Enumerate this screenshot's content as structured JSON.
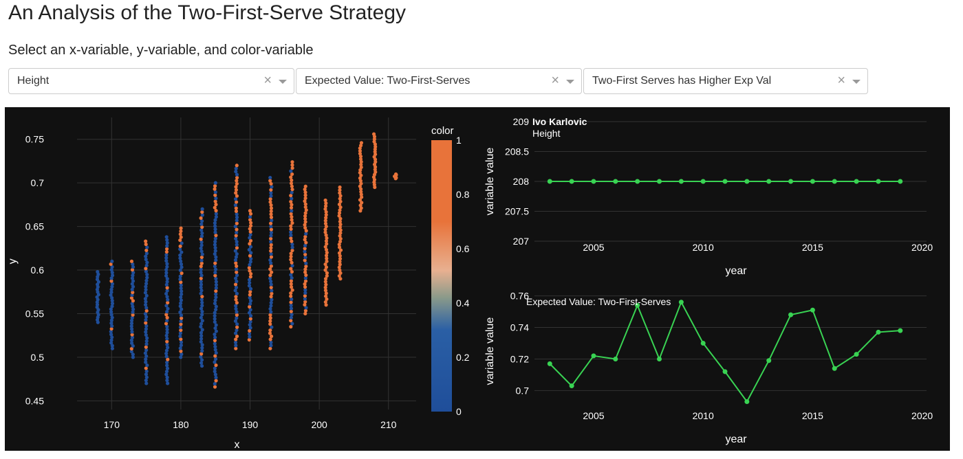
{
  "page": {
    "title": "An Analysis of the Two-First-Serve Strategy",
    "subtitle": "Select an x-variable, y-variable, and color-variable"
  },
  "dropdowns": [
    {
      "value": "Height",
      "clear_icon": "×",
      "arrow_icon": "chevron-down-icon"
    },
    {
      "value": "Expected Value: Two-First-Serves",
      "clear_icon": "×",
      "arrow_icon": "chevron-down-icon"
    },
    {
      "value": "Two-First Serves has Higher Exp Val",
      "clear_icon": "×",
      "arrow_icon": "chevron-down-icon"
    }
  ],
  "colors": {
    "panel_bg": "#111111",
    "low": "#1f4e9a",
    "high": "#e8733a",
    "line": "#39d353",
    "grid": "#333333",
    "text": "#ffffff"
  },
  "chart_data": [
    {
      "type": "scatter",
      "xlabel": "x",
      "ylabel": "y",
      "xlim": [
        165,
        214
      ],
      "ylim": [
        0.44,
        0.775
      ],
      "xticks": [
        "170",
        "180",
        "190",
        "200",
        "210"
      ],
      "yticks": [
        "0.45",
        "0.5",
        "0.55",
        "0.6",
        "0.65",
        "0.7",
        "0.75"
      ],
      "colorbar": {
        "title": "color",
        "ticks": [
          "0",
          "0.2",
          "0.4",
          "0.6",
          "0.8",
          "1"
        ]
      },
      "grid": true,
      "columns": [
        {
          "x": 168,
          "ymin": 0.54,
          "ymax": 0.598,
          "frac_high": 0.0
        },
        {
          "x": 170,
          "ymin": 0.51,
          "ymax": 0.61,
          "frac_high": 0.05
        },
        {
          "x": 173,
          "ymin": 0.5,
          "ymax": 0.61,
          "frac_high": 0.1
        },
        {
          "x": 175,
          "ymin": 0.47,
          "ymax": 0.633,
          "frac_high": 0.1
        },
        {
          "x": 178,
          "ymin": 0.47,
          "ymax": 0.638,
          "frac_high": 0.12
        },
        {
          "x": 180,
          "ymin": 0.5,
          "ymax": 0.648,
          "frac_high": 0.12
        },
        {
          "x": 183,
          "ymin": 0.49,
          "ymax": 0.67,
          "frac_high": 0.15
        },
        {
          "x": 185,
          "ymin": 0.466,
          "ymax": 0.7,
          "frac_high": 0.15
        },
        {
          "x": 188,
          "ymin": 0.51,
          "ymax": 0.72,
          "frac_high": 0.3
        },
        {
          "x": 190,
          "ymin": 0.52,
          "ymax": 0.668,
          "frac_high": 0.3
        },
        {
          "x": 193,
          "ymin": 0.51,
          "ymax": 0.706,
          "frac_high": 0.4
        },
        {
          "x": 196,
          "ymin": 0.535,
          "ymax": 0.724,
          "frac_high": 0.55
        },
        {
          "x": 198,
          "ymin": 0.55,
          "ymax": 0.696,
          "frac_high": 0.5
        },
        {
          "x": 201,
          "ymin": 0.56,
          "ymax": 0.68,
          "frac_high": 1.0
        },
        {
          "x": 203,
          "ymin": 0.59,
          "ymax": 0.695,
          "frac_high": 1.0
        },
        {
          "x": 206,
          "ymin": 0.668,
          "ymax": 0.746,
          "frac_high": 0.95
        },
        {
          "x": 208,
          "ymin": 0.695,
          "ymax": 0.756,
          "frac_high": 1.0
        },
        {
          "x": 211,
          "ymin": 0.705,
          "ymax": 0.71,
          "frac_high": 1.0
        }
      ]
    },
    {
      "type": "line",
      "annotation_title": "Ivo Karlovic",
      "annotation_sub": "Height",
      "xlabel": "year",
      "ylabel": "variable value",
      "xlim": [
        2002.3,
        2020.2
      ],
      "ylim": [
        207,
        209
      ],
      "xticks": [
        "2005",
        "2010",
        "2015",
        "2020"
      ],
      "yticks": [
        "207",
        "207.5",
        "208",
        "208.5",
        "209"
      ],
      "x": [
        2003,
        2004,
        2005,
        2006,
        2007,
        2008,
        2009,
        2010,
        2011,
        2012,
        2013,
        2014,
        2015,
        2016,
        2017,
        2018,
        2019
      ],
      "y": [
        208,
        208,
        208,
        208,
        208,
        208,
        208,
        208,
        208,
        208,
        208,
        208,
        208,
        208,
        208,
        208,
        208
      ]
    },
    {
      "type": "line",
      "annotation_title": "Expected Value: Two-First-Serves",
      "xlabel": "year",
      "ylabel": "variable value",
      "xlim": [
        2002.3,
        2020.2
      ],
      "ylim": [
        0.688,
        0.762
      ],
      "xticks": [
        "2005",
        "2010",
        "2015",
        "2020"
      ],
      "yticks": [
        "0.7",
        "0.72",
        "0.74",
        "0.76"
      ],
      "x": [
        2003,
        2004,
        2005,
        2006,
        2007,
        2008,
        2009,
        2010,
        2011,
        2012,
        2013,
        2014,
        2015,
        2016,
        2017,
        2018,
        2019
      ],
      "y": [
        0.717,
        0.703,
        0.722,
        0.72,
        0.754,
        0.72,
        0.756,
        0.73,
        0.712,
        0.693,
        0.719,
        0.748,
        0.751,
        0.714,
        0.723,
        0.737,
        0.738
      ]
    }
  ]
}
